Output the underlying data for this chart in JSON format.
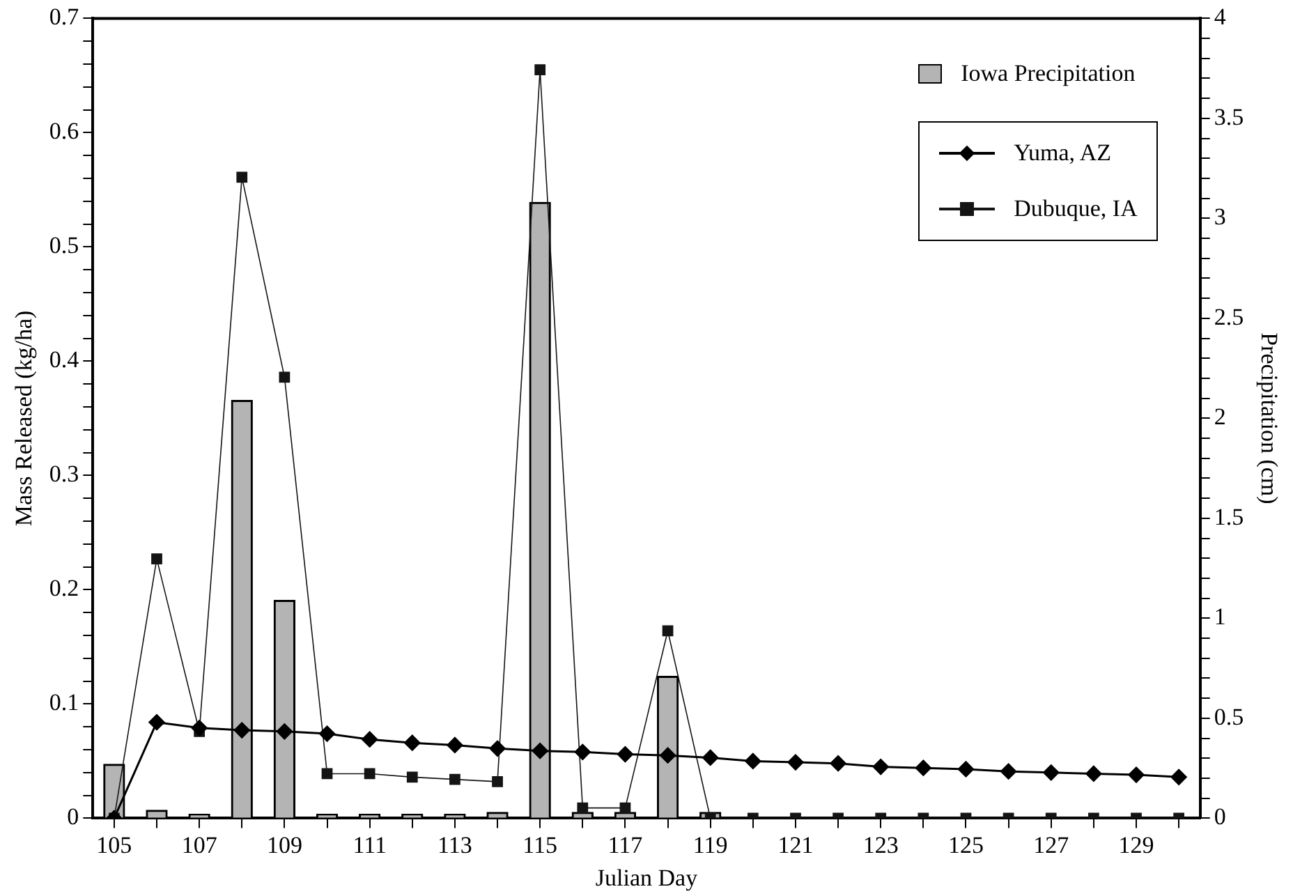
{
  "chart_data": {
    "type": "line",
    "xlabel": "Julian Day",
    "ylabel": "Mass Released (kg/ha)",
    "y2label": "Precipitation (cm)",
    "xlim": [
      104.5,
      130.5
    ],
    "xticks": [
      105,
      {
        "value": 106,
        "label": null
      },
      107,
      {
        "value": 108,
        "label": null
      },
      109,
      {
        "value": 110,
        "label": null
      },
      111,
      {
        "value": 112,
        "label": null
      },
      113,
      {
        "value": 114,
        "label": null
      },
      115,
      {
        "value": 116,
        "label": null
      },
      117,
      {
        "value": 118,
        "label": null
      },
      119,
      {
        "value": 120,
        "label": null
      },
      121,
      {
        "value": 122,
        "label": null
      },
      123,
      {
        "value": 124,
        "label": null
      },
      125,
      {
        "value": 126,
        "label": null
      },
      127,
      {
        "value": 128,
        "label": null
      },
      129,
      {
        "value": 130,
        "label": null
      }
    ],
    "ylim": [
      0,
      0.7
    ],
    "yticks": [
      0,
      {
        "value": 0.02,
        "label": null
      },
      {
        "value": 0.04,
        "label": null
      },
      {
        "value": 0.06,
        "label": null
      },
      {
        "value": 0.08,
        "label": null
      },
      0.1,
      {
        "value": 0.12,
        "label": null
      },
      {
        "value": 0.14,
        "label": null
      },
      {
        "value": 0.16,
        "label": null
      },
      {
        "value": 0.18,
        "label": null
      },
      0.2,
      {
        "value": 0.22,
        "label": null
      },
      {
        "value": 0.24,
        "label": null
      },
      {
        "value": 0.26,
        "label": null
      },
      {
        "value": 0.28,
        "label": null
      },
      0.3,
      {
        "value": 0.32,
        "label": null
      },
      {
        "value": 0.34,
        "label": null
      },
      {
        "value": 0.36,
        "label": null
      },
      {
        "value": 0.38,
        "label": null
      },
      0.4,
      {
        "value": 0.42,
        "label": null
      },
      {
        "value": 0.44,
        "label": null
      },
      {
        "value": 0.46,
        "label": null
      },
      {
        "value": 0.48,
        "label": null
      },
      0.5,
      {
        "value": 0.52,
        "label": null
      },
      {
        "value": 0.54,
        "label": null
      },
      {
        "value": 0.56,
        "label": null
      },
      {
        "value": 0.58,
        "label": null
      },
      0.6,
      {
        "value": 0.62,
        "label": null
      },
      {
        "value": 0.64,
        "label": null
      },
      {
        "value": 0.66,
        "label": null
      },
      {
        "value": 0.68,
        "label": null
      },
      0.7
    ],
    "y2lim": [
      0,
      4
    ],
    "y2ticks": [
      0,
      {
        "value": 0.1,
        "label": null
      },
      {
        "value": 0.2,
        "label": null
      },
      {
        "value": 0.3,
        "label": null
      },
      {
        "value": 0.4,
        "label": null
      },
      0.5,
      {
        "value": 0.6,
        "label": null
      },
      {
        "value": 0.7,
        "label": null
      },
      {
        "value": 0.8,
        "label": null
      },
      {
        "value": 0.9,
        "label": null
      },
      1,
      {
        "value": 1.1,
        "label": null
      },
      {
        "value": 1.2,
        "label": null
      },
      {
        "value": 1.3,
        "label": null
      },
      {
        "value": 1.4,
        "label": null
      },
      1.5,
      {
        "value": 1.6,
        "label": null
      },
      {
        "value": 1.7,
        "label": null
      },
      {
        "value": 1.8,
        "label": null
      },
      {
        "value": 1.9,
        "label": null
      },
      2,
      {
        "value": 2.1,
        "label": null
      },
      {
        "value": 2.2,
        "label": null
      },
      {
        "value": 2.3,
        "label": null
      },
      {
        "value": 2.4,
        "label": null
      },
      2.5,
      {
        "value": 2.6,
        "label": null
      },
      {
        "value": 2.7,
        "label": null
      },
      {
        "value": 2.8,
        "label": null
      },
      {
        "value": 2.9,
        "label": null
      },
      3,
      {
        "value": 3.1,
        "label": null
      },
      {
        "value": 3.2,
        "label": null
      },
      {
        "value": 3.3,
        "label": null
      },
      {
        "value": 3.4,
        "label": null
      },
      3.5,
      {
        "value": 3.6,
        "label": null
      },
      {
        "value": 3.7,
        "label": null
      },
      {
        "value": 3.8,
        "label": null
      },
      {
        "value": 3.9,
        "label": null
      },
      4
    ],
    "grid": false,
    "legend": "top right",
    "x": [
      105,
      106,
      107,
      108,
      109,
      110,
      111,
      112,
      113,
      114,
      115,
      116,
      117,
      118,
      119,
      120,
      121,
      122,
      123,
      124,
      125,
      126,
      127,
      128,
      129,
      130
    ],
    "series": [
      {
        "name": "Iowa Precipitation",
        "type": "bar",
        "axis": "y2",
        "color": "#b4b4b4",
        "x": [
          105,
          106,
          107,
          108,
          109,
          110,
          111,
          112,
          113,
          114,
          115,
          116,
          117,
          118,
          119
        ],
        "values": [
          0.27,
          0.04,
          0.02,
          2.09,
          1.09,
          0.02,
          0.02,
          0.02,
          0.02,
          0.03,
          3.08,
          0.03,
          0.03,
          0.71,
          0.03
        ]
      },
      {
        "name": "Yuma, AZ",
        "marker": "diamond",
        "color": "#000000",
        "values": [
          0,
          0.084,
          0.079,
          0.077,
          0.076,
          0.074,
          0.069,
          0.066,
          0.064,
          0.061,
          0.059,
          0.058,
          0.056,
          0.055,
          0.053,
          0.05,
          0.049,
          0.048,
          0.045,
          0.044,
          0.043,
          0.041,
          0.04,
          0.039,
          0.038,
          0.036
        ]
      },
      {
        "name": "Dubuque, IA",
        "marker": "square",
        "color": "#141414",
        "values": [
          0,
          0.227,
          0.076,
          0.561,
          0.386,
          0.039,
          0.039,
          0.036,
          0.034,
          0.032,
          0.655,
          0.009,
          0.009,
          0.164,
          0,
          0,
          0,
          0,
          0,
          0,
          0,
          0,
          0,
          0,
          0,
          0
        ]
      }
    ]
  }
}
